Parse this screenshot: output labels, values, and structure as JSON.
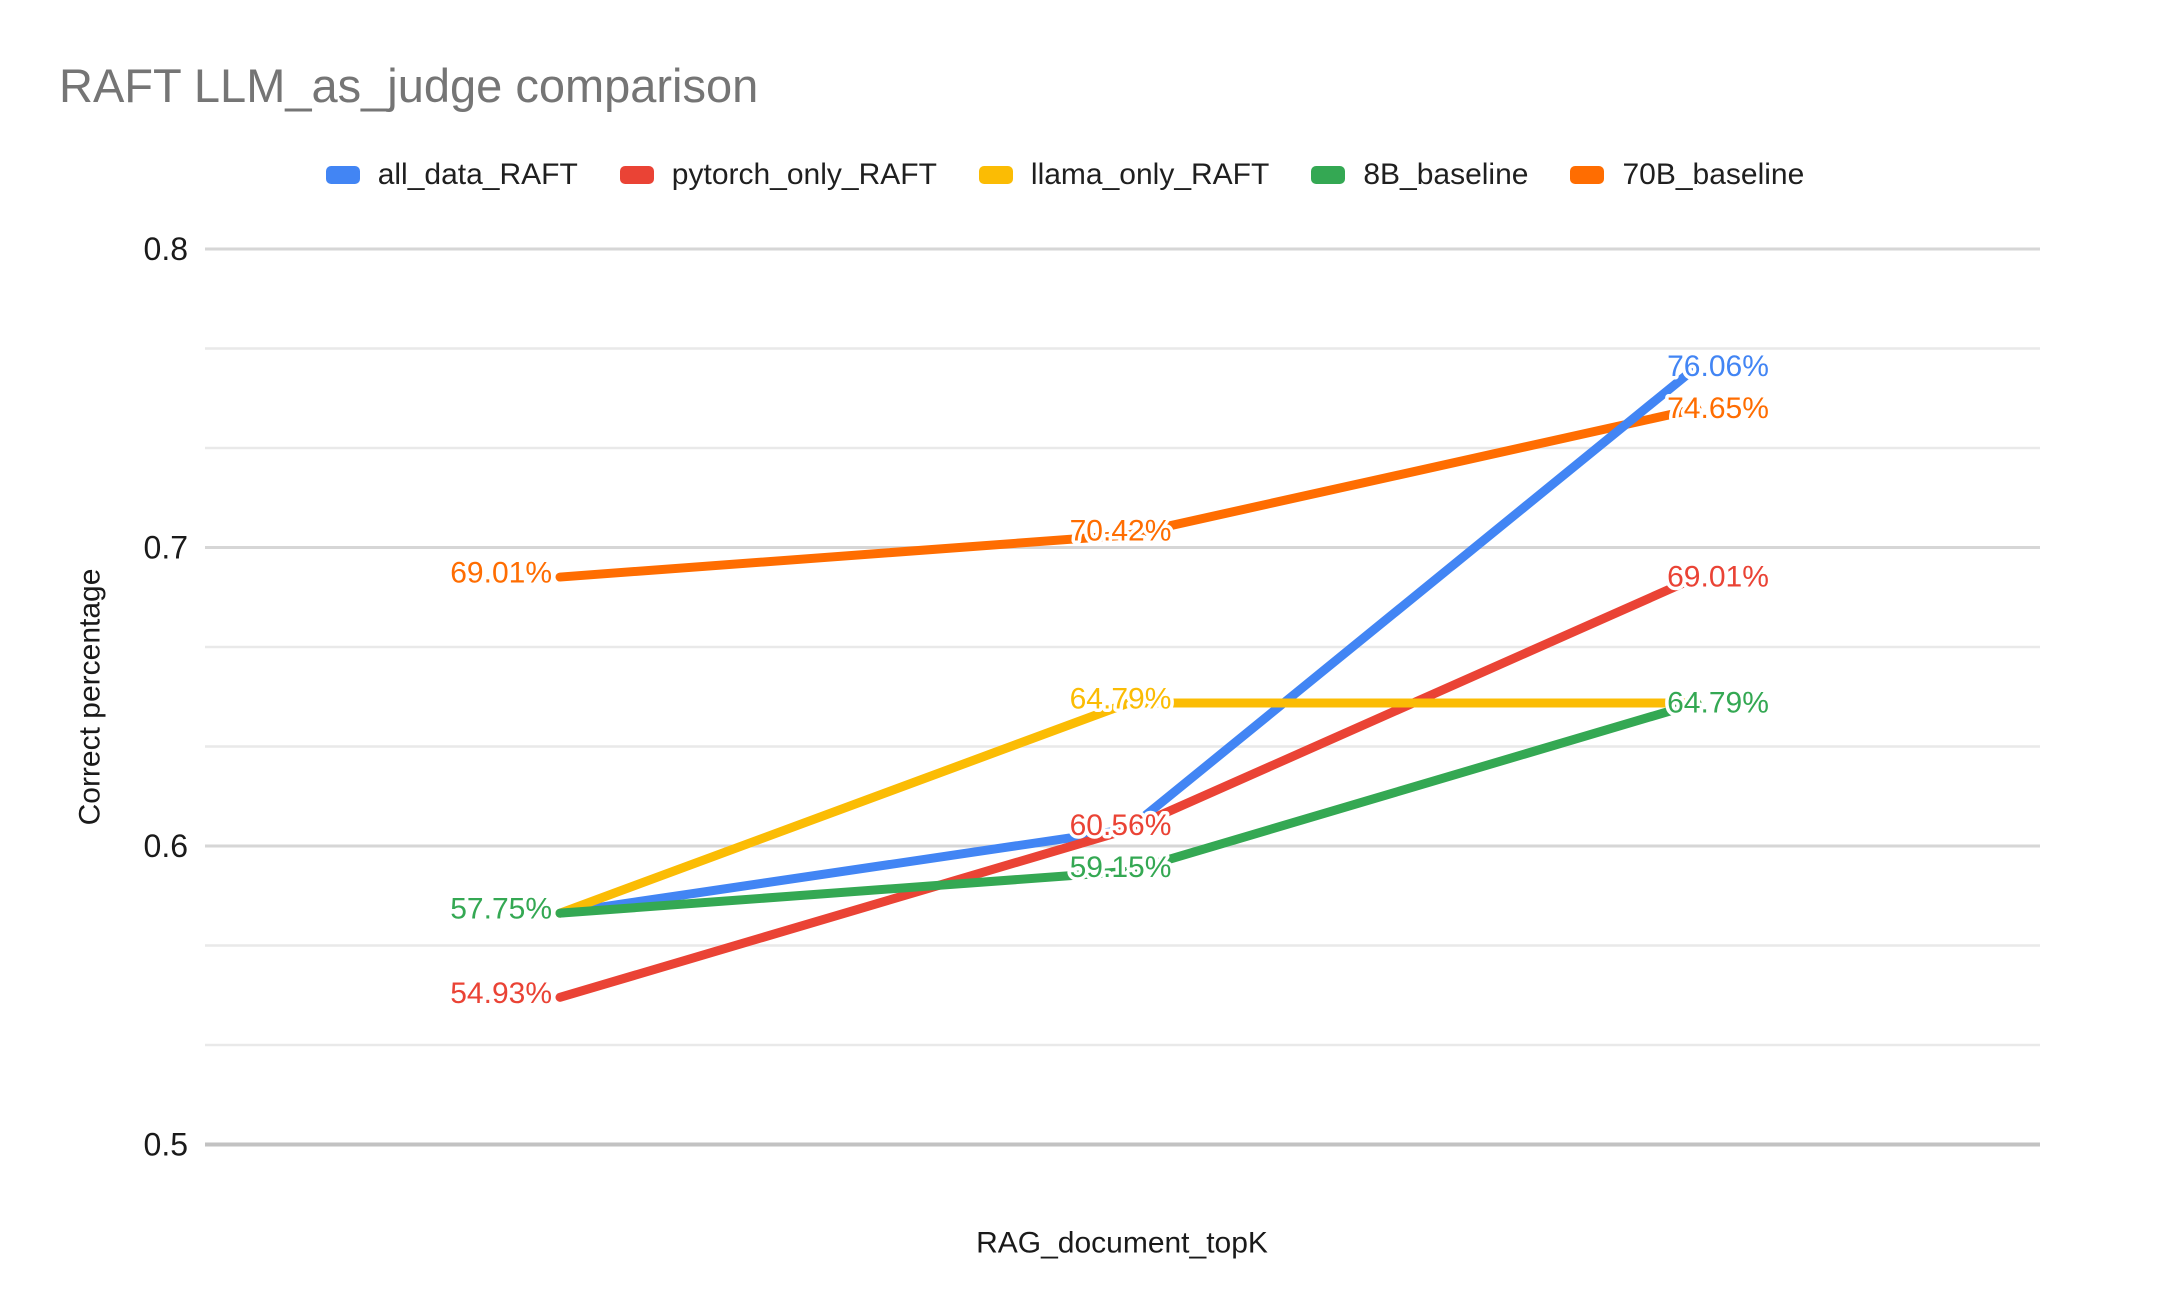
{
  "chart_data": {
    "type": "line",
    "title": "RAFT LLM_as_judge comparison",
    "xlabel": "RAG_document_topK",
    "ylabel": "Correct percentage",
    "ylim": [
      0.5,
      0.8
    ],
    "yticks": [
      0.8,
      0.7,
      0.6,
      0.5
    ],
    "ytick_labels": [
      "0.8",
      "0.7",
      "0.6",
      "0.5"
    ],
    "minor_gridlines_between_majors": 2,
    "x_tick_labels": [],
    "num_x_points": 3,
    "legend_position": "top",
    "grid": true,
    "colors": {
      "title": "#757575",
      "axis_text": "#1a1a1a",
      "gridline_major": "#d6d6d6",
      "gridline_minor": "#e9e9e9",
      "axis_baseline": "#c2c2c2",
      "background": "#ffffff"
    },
    "series": [
      {
        "name": "all_data_RAFT",
        "color": "#4285F4",
        "values": [
          0.5775,
          0.6056,
          0.7606
        ],
        "point_labels": [
          null,
          null,
          "76.06%"
        ]
      },
      {
        "name": "pytorch_only_RAFT",
        "color": "#EA4335",
        "values": [
          0.5493,
          0.6056,
          0.6901
        ],
        "point_labels": [
          "54.93%",
          "60.56%",
          "69.01%"
        ]
      },
      {
        "name": "llama_only_RAFT",
        "color": "#FBBC04",
        "values": [
          0.5775,
          0.6479,
          0.6479
        ],
        "point_labels": [
          null,
          "64.79%",
          null
        ]
      },
      {
        "name": "8B_baseline",
        "color": "#34A853",
        "values": [
          0.5775,
          0.5915,
          0.6479
        ],
        "point_labels": [
          "57.75%",
          "59.15%",
          "64.79%"
        ]
      },
      {
        "name": "70B_baseline",
        "color": "#FF6D01",
        "values": [
          0.6901,
          0.7042,
          0.7465
        ],
        "point_labels": [
          "69.01%",
          "70.42%",
          "74.65%"
        ]
      }
    ]
  }
}
